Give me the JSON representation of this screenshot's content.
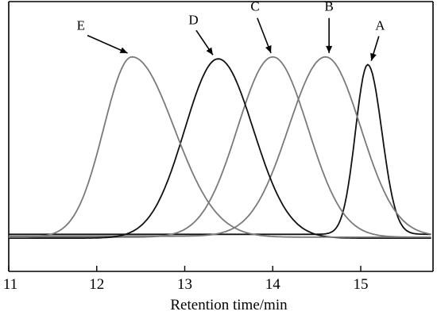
{
  "chart_data": {
    "type": "line",
    "title": "",
    "xlabel": "Retention time/min",
    "ylabel": "",
    "xlim": [
      11,
      15.8
    ],
    "ylim": [
      0,
      1
    ],
    "x_ticks": [
      11,
      12,
      13,
      14,
      15
    ],
    "y_ticks_shown": false,
    "grid": false,
    "legend": "none",
    "series": [
      {
        "name": "A",
        "color": "#111111",
        "peak_x": 15.08,
        "peak_y": 0.92,
        "width_left": 0.14,
        "width_right": 0.16,
        "baseline": 0.04
      },
      {
        "name": "B",
        "color": "#7a7a7a",
        "peak_x": 14.6,
        "peak_y": 0.96,
        "width_left": 0.42,
        "width_right": 0.4,
        "baseline": 0.03
      },
      {
        "name": "C",
        "color": "#7a7a7a",
        "peak_x": 14.0,
        "peak_y": 0.96,
        "width_left": 0.4,
        "width_right": 0.4,
        "baseline": 0.025
      },
      {
        "name": "D",
        "color": "#111111",
        "peak_x": 13.38,
        "peak_y": 0.95,
        "width_left": 0.38,
        "width_right": 0.4,
        "baseline": 0.02
      },
      {
        "name": "E",
        "color": "#7a7a7a",
        "peak_x": 12.4,
        "peak_y": 0.96,
        "width_left": 0.32,
        "width_right": 0.48,
        "baseline": 0.025
      }
    ],
    "annotations": [
      {
        "label": "E",
        "series": "E",
        "text_x": 11.82,
        "text_y": 1.1,
        "tip_x": 12.35,
        "tip_y": 0.98
      },
      {
        "label": "D",
        "series": "D",
        "text_x": 13.1,
        "text_y": 1.13,
        "tip_x": 13.32,
        "tip_y": 0.97
      },
      {
        "label": "C",
        "series": "C",
        "text_x": 13.8,
        "text_y": 1.2,
        "tip_x": 13.98,
        "tip_y": 0.98
      },
      {
        "label": "B",
        "series": "B",
        "text_x": 14.64,
        "text_y": 1.2,
        "tip_x": 14.64,
        "tip_y": 0.98
      },
      {
        "label": "A",
        "series": "A",
        "text_x": 15.22,
        "text_y": 1.1,
        "tip_x": 15.12,
        "tip_y": 0.94
      }
    ]
  }
}
